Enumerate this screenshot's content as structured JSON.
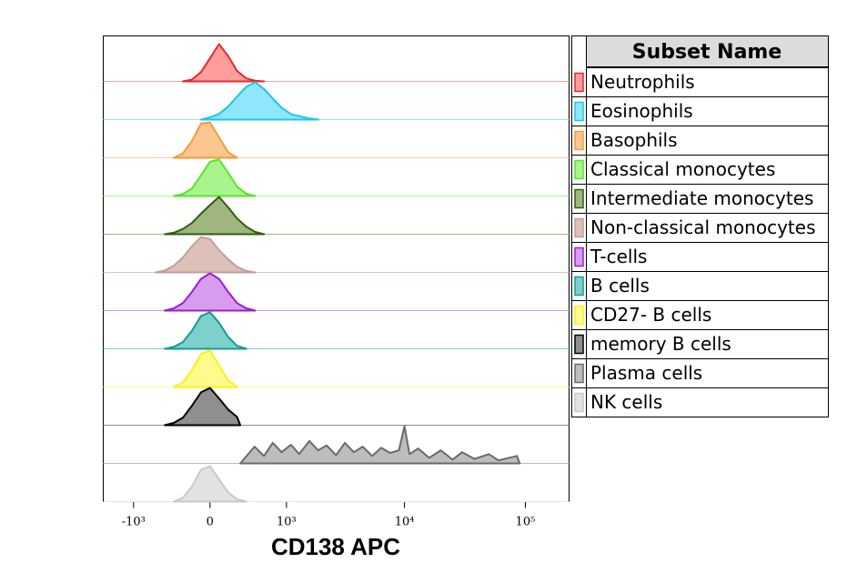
{
  "chart_data": {
    "type": "histogram-overlay",
    "xlabel": "CD138 APC",
    "legend_title": "Subset Name",
    "xscale": "biex",
    "xlim": [
      -1850,
      230000
    ],
    "xticks": [
      {
        "value": -1000,
        "label": "-10³"
      },
      0,
      {
        "value": 1000,
        "label": "10³"
      },
      {
        "value": 10000,
        "label": "10⁴"
      },
      {
        "value": 100000,
        "label": "10⁵"
      }
    ],
    "series": [
      {
        "name": "Neutrophils",
        "color": "#e8282e",
        "fill": "#ff9d9d",
        "x": [
          -266,
          -174,
          -85,
          0,
          85,
          174,
          266,
          368,
          479,
          603
        ],
        "values": [
          0,
          5,
          25,
          62,
          100,
          68,
          28,
          8,
          2,
          0
        ]
      },
      {
        "name": "Eosinophils",
        "color": "#1ec5ee",
        "fill": "#90e6fb",
        "x": [
          -85,
          0,
          85,
          174,
          266,
          368,
          479,
          603,
          750,
          917,
          1113,
          1606,
          1919
        ],
        "values": [
          0,
          6,
          15,
          35,
          62,
          88,
          100,
          82,
          55,
          30,
          14,
          3,
          0
        ]
      },
      {
        "name": "Basophils",
        "color": "#f59a3c",
        "fill": "#fbc690",
        "x": [
          -368,
          -266,
          -174,
          -85,
          0,
          85,
          174,
          266
        ],
        "values": [
          0,
          12,
          45,
          92,
          95,
          55,
          15,
          0
        ]
      },
      {
        "name": "Classical monocytes",
        "color": "#55e62a",
        "fill": "#a8f58e",
        "x": [
          -368,
          -266,
          -174,
          -85,
          0,
          85,
          174,
          266,
          368,
          479
        ],
        "values": [
          0,
          5,
          20,
          55,
          92,
          98,
          62,
          25,
          6,
          0
        ]
      },
      {
        "name": "Intermediate monocytes",
        "color": "#2f5f12",
        "fill": "#9fb680",
        "x": [
          -479,
          -368,
          -266,
          -174,
          -85,
          0,
          85,
          174,
          266,
          368,
          479,
          603
        ],
        "values": [
          0,
          4,
          14,
          30,
          55,
          78,
          100,
          72,
          42,
          20,
          6,
          0
        ]
      },
      {
        "name": "Non-classical monocytes",
        "color": "#c59e98",
        "fill": "#dcc0b9",
        "x": [
          -603,
          -479,
          -368,
          -266,
          -174,
          -85,
          0,
          85,
          174,
          266,
          368,
          479
        ],
        "values": [
          0,
          5,
          18,
          40,
          70,
          95,
          90,
          60,
          35,
          15,
          4,
          0
        ]
      },
      {
        "name": "T-cells",
        "color": "#9b1fd1",
        "fill": "#d89cef",
        "x": [
          -479,
          -368,
          -266,
          -174,
          -85,
          0,
          85,
          174,
          266,
          368,
          479
        ],
        "values": [
          0,
          6,
          20,
          50,
          85,
          100,
          85,
          50,
          20,
          6,
          0
        ]
      },
      {
        "name": "B cells",
        "color": "#159b96",
        "fill": "#7ed0cb",
        "x": [
          -479,
          -368,
          -266,
          -174,
          -85,
          0,
          85,
          174,
          266,
          368
        ],
        "values": [
          0,
          5,
          18,
          48,
          88,
          98,
          70,
          32,
          8,
          0
        ]
      },
      {
        "name": "CD27- B cells",
        "color": "#f8f11a",
        "fill": "#fdfb8c",
        "x": [
          -368,
          -266,
          -174,
          -85,
          0,
          85,
          174,
          266
        ],
        "values": [
          0,
          12,
          45,
          88,
          98,
          58,
          18,
          0
        ]
      },
      {
        "name": "memory B cells",
        "color": "#000000",
        "fill": "#8f8f8f",
        "x": [
          -479,
          -368,
          -266,
          -174,
          -85,
          0,
          85,
          174,
          266,
          300
        ],
        "values": [
          0,
          6,
          20,
          52,
          88,
          100,
          72,
          42,
          22,
          0
        ]
      },
      {
        "name": "Plasma cells",
        "color": "#6a6a6a",
        "fill": "#bdbdbd",
        "x": [
          300,
          470,
          600,
          740,
          900,
          1100,
          1300,
          1600,
          1900,
          2250,
          2700,
          3200,
          3800,
          4500,
          5400,
          6400,
          7600,
          9000,
          10000,
          11000,
          13000,
          16000,
          20000,
          25000,
          30000,
          38000,
          50000,
          60000,
          85000,
          90000
        ],
        "values": [
          0,
          45,
          20,
          55,
          30,
          50,
          25,
          60,
          35,
          48,
          22,
          55,
          30,
          45,
          20,
          42,
          28,
          35,
          100,
          25,
          40,
          15,
          35,
          10,
          30,
          12,
          25,
          8,
          20,
          0
        ]
      },
      {
        "name": "NK cells",
        "color": "#c8c8c8",
        "fill": "#e2e2e2",
        "x": [
          -368,
          -266,
          -174,
          -85,
          0,
          85,
          174,
          266,
          368
        ],
        "values": [
          0,
          10,
          40,
          85,
          95,
          60,
          25,
          6,
          0
        ]
      }
    ]
  }
}
